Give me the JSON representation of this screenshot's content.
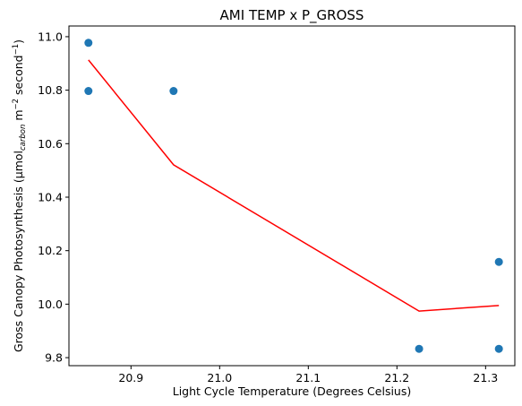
{
  "chart_data": {
    "type": "scatter",
    "title": "AMI TEMP x P_GROSS",
    "xlabel": "Light Cycle Temperature (Degrees Celsius)",
    "ylabel": {
      "prefix": "Gross Canopy Photosynthesis (µmol",
      "subscript": "carbon",
      "mid": " m",
      "sup1": "−2",
      "mid2": " second",
      "sup2": "−1",
      "suffix": ")"
    },
    "xlim": [
      20.83,
      21.333
    ],
    "ylim": [
      9.77,
      11.04
    ],
    "xticks": [
      {
        "value": 20.9,
        "label": "20.9"
      },
      {
        "value": 21.0,
        "label": "21.0"
      },
      {
        "value": 21.1,
        "label": "21.1"
      },
      {
        "value": 21.2,
        "label": "21.2"
      },
      {
        "value": 21.3,
        "label": "21.3"
      }
    ],
    "yticks": [
      {
        "value": 9.8,
        "label": "9.8"
      },
      {
        "value": 10.0,
        "label": "10.0"
      },
      {
        "value": 10.2,
        "label": "10.2"
      },
      {
        "value": 10.4,
        "label": "10.4"
      },
      {
        "value": 10.6,
        "label": "10.6"
      },
      {
        "value": 10.8,
        "label": "10.8"
      },
      {
        "value": 11.0,
        "label": "11.0"
      }
    ],
    "grid": false,
    "legend": "none",
    "series": [
      {
        "kind": "scatter",
        "color": "#1f77b4",
        "points": [
          {
            "x": 20.852,
            "y": 10.977
          },
          {
            "x": 20.852,
            "y": 10.797
          },
          {
            "x": 20.948,
            "y": 10.797
          },
          {
            "x": 21.225,
            "y": 9.833
          },
          {
            "x": 21.315,
            "y": 9.833
          },
          {
            "x": 21.315,
            "y": 10.158
          }
        ]
      },
      {
        "kind": "line",
        "color": "#ff0000",
        "points": [
          {
            "x": 20.852,
            "y": 10.913
          },
          {
            "x": 20.948,
            "y": 10.521
          },
          {
            "x": 21.225,
            "y": 9.974
          },
          {
            "x": 21.315,
            "y": 9.995
          }
        ]
      }
    ]
  }
}
